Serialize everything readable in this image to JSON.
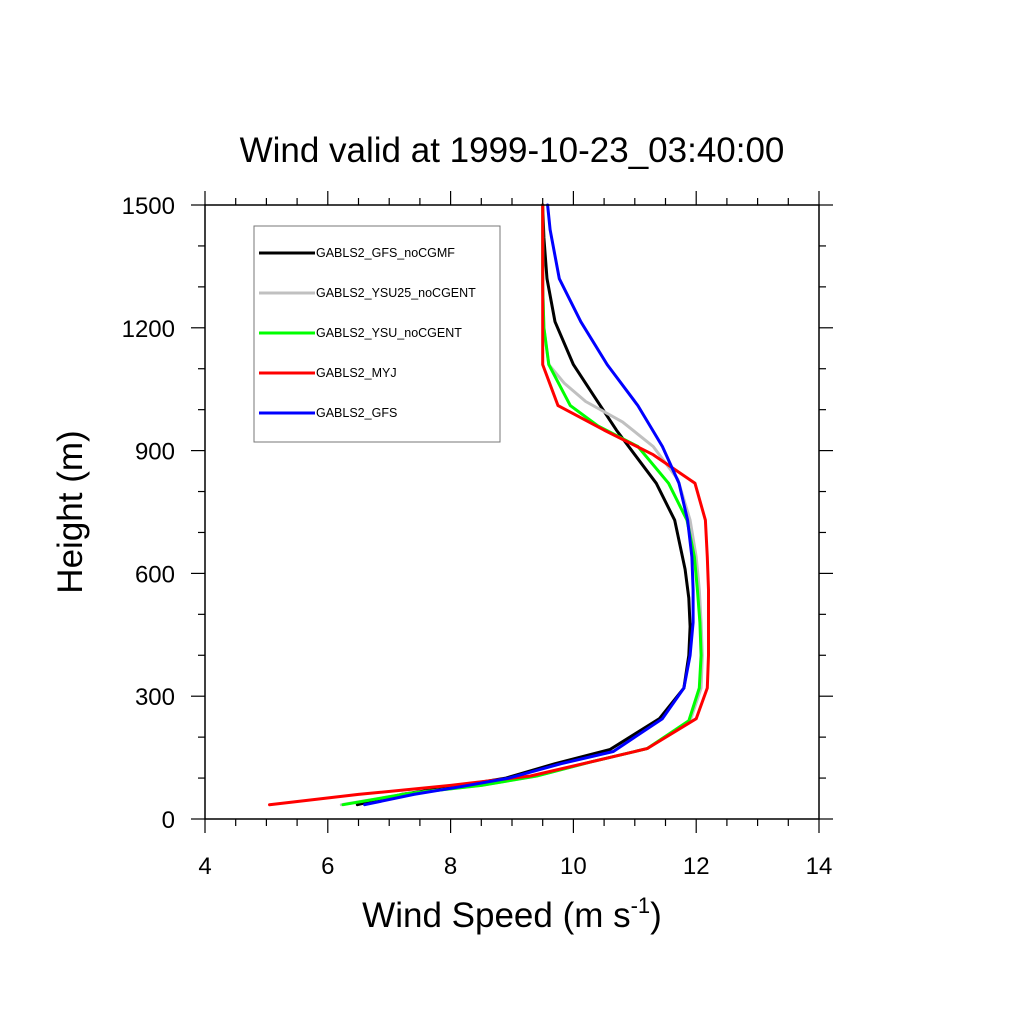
{
  "chart_data": {
    "type": "line",
    "title": "Wind valid at 1999-10-23_03:40:00",
    "xlabel": "Wind Speed (m s",
    "xlabel_sup": "-1",
    "xlabel_tail": ")",
    "ylabel": "Height (m)",
    "xlim": [
      4,
      14
    ],
    "ylim": [
      0,
      1500
    ],
    "x_ticks": [
      4,
      6,
      8,
      10,
      12,
      14
    ],
    "y_ticks": [
      0,
      300,
      600,
      900,
      1200,
      1500
    ],
    "x_ticks_labels": [
      "4",
      "6",
      "8",
      "10",
      "12",
      "14"
    ],
    "y_ticks_labels": [
      "0",
      "300",
      "600",
      "900",
      "1200",
      "1500"
    ],
    "grid": false,
    "legend_position": "top-left",
    "series": [
      {
        "name": "GABLS2_GFS_noCGMF",
        "color": "#000000",
        "points": [
          [
            6.48,
            35
          ],
          [
            7.2,
            60
          ],
          [
            8.0,
            78
          ],
          [
            8.9,
            100
          ],
          [
            9.7,
            135
          ],
          [
            10.6,
            170
          ],
          [
            11.4,
            245
          ],
          [
            11.8,
            320
          ],
          [
            11.88,
            400
          ],
          [
            11.9,
            470
          ],
          [
            11.88,
            540
          ],
          [
            11.82,
            610
          ],
          [
            11.65,
            730
          ],
          [
            11.35,
            820
          ],
          [
            11.0,
            890
          ],
          [
            10.7,
            950
          ],
          [
            10.35,
            1030
          ],
          [
            10.0,
            1110
          ],
          [
            9.7,
            1215
          ],
          [
            9.57,
            1320
          ],
          [
            9.52,
            1420
          ],
          [
            9.5,
            1500
          ]
        ]
      },
      {
        "name": "GABLS2_YSU25_noCGENT",
        "color": "#c0c0c0",
        "points": [
          [
            6.22,
            35
          ],
          [
            7.3,
            62
          ],
          [
            8.5,
            82
          ],
          [
            9.4,
            105
          ],
          [
            10.3,
            140
          ],
          [
            11.2,
            172
          ],
          [
            11.9,
            240
          ],
          [
            12.08,
            320
          ],
          [
            12.1,
            400
          ],
          [
            12.08,
            480
          ],
          [
            12.05,
            560
          ],
          [
            12.0,
            640
          ],
          [
            11.9,
            730
          ],
          [
            11.7,
            830
          ],
          [
            11.3,
            910
          ],
          [
            10.8,
            970
          ],
          [
            10.2,
            1020
          ],
          [
            9.85,
            1065
          ],
          [
            9.6,
            1110
          ],
          [
            9.52,
            1200
          ],
          [
            9.5,
            1300
          ],
          [
            9.5,
            1400
          ],
          [
            9.5,
            1500
          ]
        ]
      },
      {
        "name": "GABLS2_YSU_noCGENT",
        "color": "#00ff00",
        "points": [
          [
            6.25,
            35
          ],
          [
            7.3,
            62
          ],
          [
            8.5,
            82
          ],
          [
            9.4,
            105
          ],
          [
            10.3,
            140
          ],
          [
            11.2,
            172
          ],
          [
            11.88,
            240
          ],
          [
            12.05,
            320
          ],
          [
            12.08,
            400
          ],
          [
            12.06,
            480
          ],
          [
            12.02,
            560
          ],
          [
            11.97,
            640
          ],
          [
            11.85,
            730
          ],
          [
            11.55,
            820
          ],
          [
            11.05,
            910
          ],
          [
            10.4,
            960
          ],
          [
            9.95,
            1010
          ],
          [
            9.6,
            1110
          ],
          [
            9.52,
            1200
          ],
          [
            9.5,
            1300
          ],
          [
            9.5,
            1400
          ],
          [
            9.5,
            1500
          ]
        ]
      },
      {
        "name": "GABLS2_MYJ",
        "color": "#ff0000",
        "points": [
          [
            5.05,
            35
          ],
          [
            6.5,
            60
          ],
          [
            8.0,
            82
          ],
          [
            9.3,
            105
          ],
          [
            10.3,
            140
          ],
          [
            11.2,
            172
          ],
          [
            12.0,
            245
          ],
          [
            12.18,
            320
          ],
          [
            12.2,
            400
          ],
          [
            12.2,
            480
          ],
          [
            12.2,
            560
          ],
          [
            12.18,
            640
          ],
          [
            12.15,
            730
          ],
          [
            11.98,
            820
          ],
          [
            11.3,
            890
          ],
          [
            10.5,
            950
          ],
          [
            9.75,
            1010
          ],
          [
            9.5,
            1110
          ],
          [
            9.5,
            1200
          ],
          [
            9.5,
            1300
          ],
          [
            9.5,
            1400
          ],
          [
            9.5,
            1500
          ]
        ]
      },
      {
        "name": "GABLS2_GFS",
        "color": "#0000ff",
        "points": [
          [
            6.6,
            35
          ],
          [
            7.4,
            60
          ],
          [
            8.2,
            80
          ],
          [
            8.95,
            100
          ],
          [
            9.8,
            135
          ],
          [
            10.65,
            165
          ],
          [
            11.45,
            245
          ],
          [
            11.8,
            320
          ],
          [
            11.9,
            400
          ],
          [
            11.95,
            480
          ],
          [
            11.95,
            560
          ],
          [
            11.93,
            640
          ],
          [
            11.86,
            730
          ],
          [
            11.72,
            820
          ],
          [
            11.45,
            910
          ],
          [
            11.05,
            1010
          ],
          [
            10.55,
            1110
          ],
          [
            10.12,
            1215
          ],
          [
            9.77,
            1320
          ],
          [
            9.62,
            1440
          ],
          [
            9.58,
            1500
          ]
        ]
      }
    ]
  }
}
